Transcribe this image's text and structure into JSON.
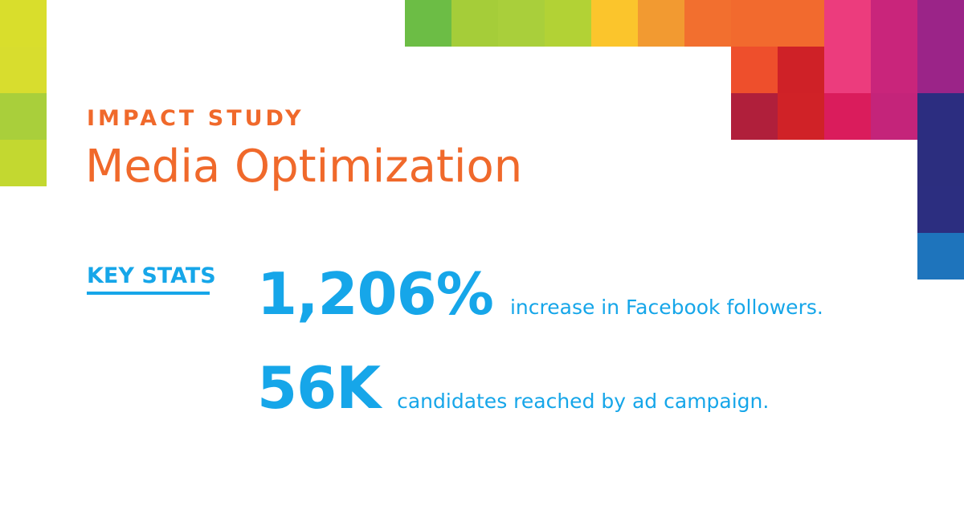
{
  "header": {
    "eyebrow": "IMPACT STUDY",
    "title": "Media Optimization"
  },
  "key_stats": {
    "label": "KEY STATS",
    "items": [
      {
        "value": "1,206%",
        "description": "increase in Facebook followers."
      },
      {
        "value": "56K",
        "description": "candidates reached by ad campaign."
      }
    ]
  },
  "colors": {
    "accent_orange": "#f0692b",
    "accent_blue": "#16a6e9",
    "background": "#ffffff"
  },
  "decor": {
    "left_strip": [
      "#d9de2c",
      "#d8dd2e",
      "#a9cf3b",
      "#c3d830"
    ],
    "top_row": [
      "#6cbd45",
      "#a5cd39",
      "#a9cf3b",
      "#b2d235",
      "#fbc52c",
      "#f29a31",
      "#f26f2f",
      "#f26a2e",
      "#f26a2e",
      "#ec3c7d",
      "#c9257b",
      "#9b2488"
    ],
    "second_row": [
      "#ee4f2c",
      "#cf2127",
      "#ec3c7d",
      "#c9257b",
      "#9b2488"
    ],
    "third_row": [
      "#b01f3b",
      "#d02227",
      "#da1c5c",
      "#c4247a",
      "#2c2d80"
    ],
    "right_column": [
      "#2c2e7f",
      "#2c2e80",
      "#1e74bc"
    ]
  }
}
